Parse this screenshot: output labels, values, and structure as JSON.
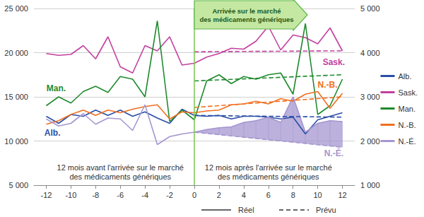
{
  "chart_data": {
    "type": "line",
    "x": [
      -12,
      -11,
      -10,
      -9,
      -8,
      -7,
      -6,
      -5,
      -4,
      -3,
      -2,
      -1,
      0,
      1,
      2,
      3,
      4,
      5,
      6,
      7,
      8,
      9,
      10,
      11,
      12
    ],
    "xlim": [
      -13,
      13
    ],
    "xticks": [
      -12,
      -10,
      -8,
      -6,
      -4,
      -2,
      0,
      2,
      4,
      6,
      8,
      10,
      12
    ],
    "ylim": [
      5000,
      25000
    ],
    "yticks": [
      {
        "value": 5000,
        "label": "5 000"
      },
      {
        "value": 10000,
        "label": "10 000"
      },
      {
        "value": 15000,
        "label": "15 000"
      },
      {
        "value": 20000,
        "label": "20 000"
      },
      {
        "value": 25000,
        "label": "25 000"
      }
    ],
    "y2lim": [
      1000,
      5000
    ],
    "y2ticks": [
      {
        "value": 1000,
        "label": "1 000"
      },
      {
        "value": 2000,
        "label": "2 000"
      },
      {
        "value": 3000,
        "label": "3 000"
      },
      {
        "value": 4000,
        "label": "4 000"
      },
      {
        "value": 5000,
        "label": "5 000"
      }
    ],
    "grid": true,
    "legend": "right",
    "series": [
      {
        "name": "Alb.",
        "color": "#2a4ea6",
        "line_style": "solid",
        "values": [
          12800,
          12000,
          13000,
          12800,
          13500,
          12900,
          13500,
          12800,
          13300,
          12600,
          12000,
          13600,
          12900,
          12800,
          12900,
          12500,
          12800,
          12800,
          12700,
          12500,
          12700,
          10800,
          12400,
          12800,
          13200
        ]
      },
      {
        "name": "Sask.",
        "color": "#c2409f",
        "line_style": "solid",
        "values": [
          19900,
          19700,
          19800,
          20800,
          19300,
          21800,
          18400,
          17700,
          20800,
          20200,
          21800,
          18600,
          18800,
          19500,
          19900,
          20500,
          20400,
          21300,
          23000,
          20300,
          22000,
          21700,
          21000,
          22800,
          20200
        ]
      },
      {
        "name": "Man.",
        "color": "#1f8a2e",
        "line_style": "solid",
        "values": [
          14000,
          15000,
          14300,
          15600,
          16200,
          15500,
          17300,
          17000,
          15000,
          23600,
          12200,
          13500,
          12400,
          16800,
          17500,
          16500,
          17300,
          17000,
          17500,
          17700,
          15300,
          23300,
          13000,
          14000,
          17000
        ]
      },
      {
        "name": "N.-B.",
        "color": "#f07020",
        "line_style": "solid",
        "values": [
          11900,
          12300,
          13000,
          13500,
          12900,
          13500,
          13200,
          13600,
          13900,
          14100,
          12500,
          13300,
          13200,
          13400,
          13500,
          14100,
          14200,
          14500,
          14200,
          14800,
          14500,
          15300,
          15600,
          13700,
          15400
        ]
      },
      {
        "name": "N.-É.",
        "color": "#a597d0",
        "line_style": "solid",
        "values": [
          12500,
          11700,
          12000,
          13100,
          11900,
          12600,
          12500,
          11200,
          14100,
          9600,
          10500,
          10800,
          11000,
          11300,
          11500,
          11600,
          12100,
          12300,
          12700,
          12100,
          15000,
          11000,
          12000,
          12300,
          12200
        ]
      },
      {
        "name": "Alb.",
        "color": "#2a4ea6",
        "line_style": "dashed",
        "values": [
          null,
          null,
          null,
          null,
          null,
          null,
          null,
          null,
          null,
          null,
          null,
          null,
          12900,
          12880,
          12870,
          12850,
          12830,
          12820,
          12800,
          12780,
          12770,
          12750,
          12730,
          12720,
          12700
        ]
      },
      {
        "name": "Sask.",
        "color": "#c2409f",
        "line_style": "dashed",
        "values": [
          null,
          null,
          null,
          null,
          null,
          null,
          null,
          null,
          null,
          null,
          null,
          null,
          20100,
          20110,
          20120,
          20130,
          20140,
          20150,
          20150,
          20160,
          20170,
          20180,
          20190,
          20200,
          20200
        ]
      },
      {
        "name": "Man.",
        "color": "#1f8a2e",
        "line_style": "dashed",
        "values": [
          null,
          null,
          null,
          null,
          null,
          null,
          null,
          null,
          null,
          null,
          null,
          null,
          16800,
          16860,
          16920,
          16980,
          17030,
          17090,
          17150,
          17210,
          17270,
          17330,
          17380,
          17440,
          17500
        ]
      },
      {
        "name": "N.-B.",
        "color": "#f07020",
        "line_style": "dashed",
        "values": [
          null,
          null,
          null,
          null,
          null,
          null,
          null,
          null,
          null,
          null,
          null,
          null,
          13800,
          13900,
          14000,
          14100,
          14200,
          14300,
          14400,
          14500,
          14600,
          14700,
          14800,
          14900,
          15000
        ]
      },
      {
        "name": "N.-É.",
        "color": "#a597d0",
        "line_style": "dashed",
        "values": [
          null,
          null,
          null,
          null,
          null,
          null,
          null,
          null,
          null,
          null,
          null,
          null,
          11000,
          10860,
          10720,
          10580,
          10430,
          10290,
          10150,
          10010,
          9870,
          9730,
          9580,
          9440,
          9300
        ]
      }
    ],
    "style_legend": [
      {
        "label": "Réel",
        "line_style": "solid"
      },
      {
        "label": "Prévu",
        "line_style": "dashed"
      }
    ],
    "event": {
      "text": "Arrivée sur le marché\ndes médicaments génériques",
      "x": 0
    },
    "period_labels": [
      {
        "text": "12 mois avant l'arrivée sur le marché\ndes médicaments génériques",
        "x": -6,
        "y": 6500
      },
      {
        "text": "12 mois après l'arrivée sur le marché\ndes médicaments génériques",
        "x": 6,
        "y": 6500
      }
    ],
    "annotations": [
      {
        "text": "Sask.",
        "x": 11.3,
        "y": 18900,
        "color": "#c2409f"
      },
      {
        "text": "Man.",
        "x": -11.2,
        "y": 16000,
        "color": "#1f8a2e"
      },
      {
        "text": "Alb.",
        "x": -11.5,
        "y": 10900,
        "color": "#2a4ea6"
      },
      {
        "text": "N.-B.",
        "x": 10.8,
        "y": 16400,
        "color": "#f07020"
      },
      {
        "text": "N.-É.",
        "x": 11.3,
        "y": 8600,
        "color": "#a597d0"
      }
    ]
  }
}
